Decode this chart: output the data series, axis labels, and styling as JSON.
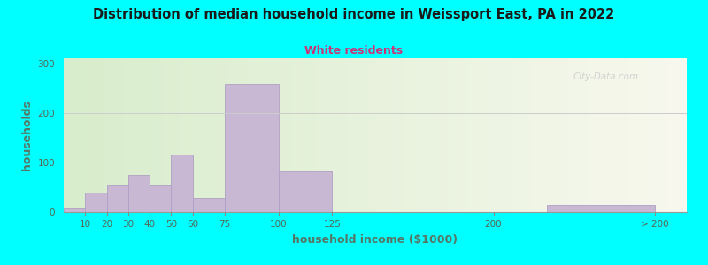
{
  "title": "Distribution of median household income in Weissport East, PA in 2022",
  "subtitle": "White residents",
  "xlabel": "household income ($1000)",
  "ylabel": "households",
  "background_outer": "#00FFFF",
  "bar_color": "#C8B8D4",
  "bar_edgecolor": "#B0A0C4",
  "subtitle_color": "#CC3377",
  "title_color": "#1a1a1a",
  "axis_label_color": "#557766",
  "tick_label_color": "#556655",
  "watermark": "City-Data.com",
  "values": [
    8,
    40,
    55,
    75,
    55,
    115,
    28,
    258,
    82,
    0,
    15
  ],
  "bar_lefts": [
    0,
    10,
    20,
    30,
    40,
    50,
    60,
    75,
    100,
    125,
    225
  ],
  "bar_widths": [
    10,
    10,
    10,
    10,
    10,
    10,
    15,
    25,
    25,
    25,
    50
  ],
  "ylim": [
    0,
    310
  ],
  "yticks": [
    0,
    100,
    200,
    300
  ],
  "xlim": [
    0,
    290
  ],
  "xtick_positions": [
    10,
    20,
    30,
    40,
    50,
    60,
    75,
    100,
    125,
    200,
    275
  ],
  "xtick_labels": [
    "10",
    "20",
    "30",
    "40",
    "50",
    "60",
    "75",
    "100",
    "125",
    "200",
    "> 200"
  ],
  "plot_bg_left": "#d8edcc",
  "plot_bg_right": "#f5f5e8"
}
